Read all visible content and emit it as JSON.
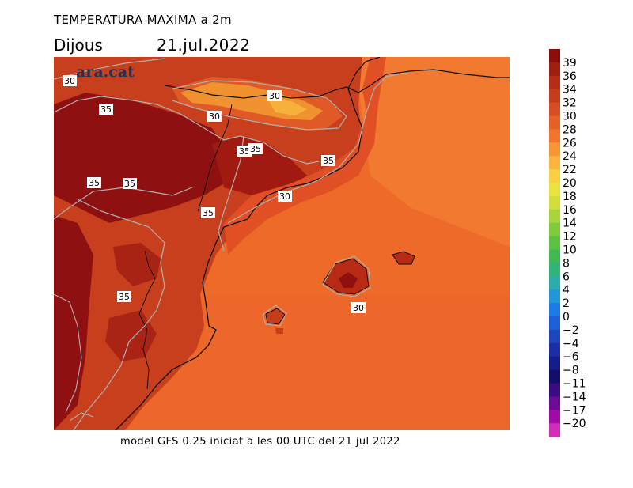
{
  "header": {
    "title": "TEMPERATURA MAXIMA a 2m",
    "day": "Dijous",
    "date": "21.jul.2022"
  },
  "map": {
    "logo": "ara.cat",
    "contour_labels": [
      "30",
      "35",
      "30",
      "30",
      "35",
      "35",
      "35",
      "35",
      "35",
      "30",
      "35",
      "35",
      "30"
    ]
  },
  "legend": {
    "bands": [
      {
        "label": "39",
        "color": "#8b0d0d"
      },
      {
        "label": "36",
        "color": "#a01d12"
      },
      {
        "label": "34",
        "color": "#b52d16"
      },
      {
        "label": "32",
        "color": "#c63d1c"
      },
      {
        "label": "30",
        "color": "#d64e22"
      },
      {
        "label": "28",
        "color": "#e66128"
      },
      {
        "label": "26",
        "color": "#f3752d"
      },
      {
        "label": "24",
        "color": "#f99634"
      },
      {
        "label": "22",
        "color": "#fcb43c"
      },
      {
        "label": "20",
        "color": "#f9d040"
      },
      {
        "label": "18",
        "color": "#ede33e"
      },
      {
        "label": "16",
        "color": "#cfe03b"
      },
      {
        "label": "14",
        "color": "#a8d63a"
      },
      {
        "label": "12",
        "color": "#80cb3c"
      },
      {
        "label": "10",
        "color": "#5cc043"
      },
      {
        "label": "8",
        "color": "#42b854"
      },
      {
        "label": "6",
        "color": "#33b27a"
      },
      {
        "label": "4",
        "color": "#29acab"
      },
      {
        "label": "2",
        "color": "#2196d8"
      },
      {
        "label": "0",
        "color": "#1c7ae9"
      },
      {
        "label": "−2",
        "color": "#1c60d8"
      },
      {
        "label": "−4",
        "color": "#1d45c0"
      },
      {
        "label": "−6",
        "color": "#1c2ea6"
      },
      {
        "label": "−8",
        "color": "#161c8a"
      },
      {
        "label": "−11",
        "color": "#140e6b"
      },
      {
        "label": "−14",
        "color": "#3a0c82"
      },
      {
        "label": "−17",
        "color": "#6b0b96"
      },
      {
        "label": "−20",
        "color": "#a10ba5"
      },
      {
        "label": "",
        "color": "#d22cb8"
      }
    ]
  },
  "footer": "model GFS 0.25 iniciat a les 00 UTC del 21 jul 2022"
}
